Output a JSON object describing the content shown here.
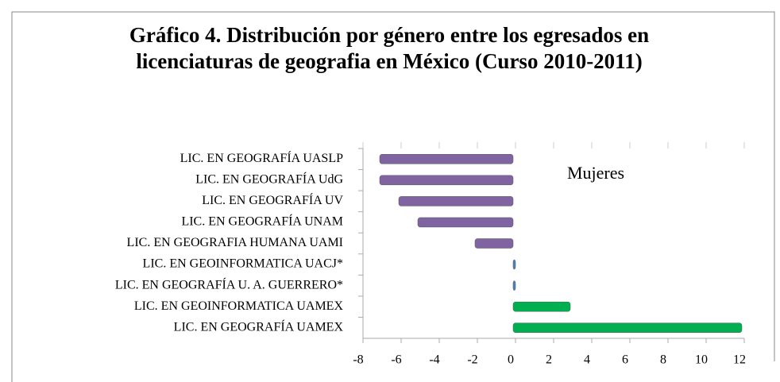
{
  "chart_data": {
    "type": "bar",
    "orientation": "horizontal",
    "title": "Gráfico 4.  Distribución por género entre los egresados en licenciaturas de geografia en México (Curso 2010-2011)",
    "annotation": "Mujeres",
    "categories": [
      "LIC. EN GEOGRAFÍA  UASLP",
      "LIC. EN GEOGRAFÍA  UdG",
      "LIC. EN GEOGRAFÍA  UV",
      "LIC. EN GEOGRAFÍA  UNAM",
      "LIC. EN GEOGRAFIA HUMANA  UAMI",
      "LIC. EN GEOINFORMATICA  UACJ*",
      "LIC. EN GEOGRAFÍA  U. A. GUERRERO*",
      "LIC. EN GEOINFORMATICA  UAMEX",
      "LIC. EN GEOGRAFÍA  UAMEX"
    ],
    "values": [
      -7,
      -7,
      -6,
      -5,
      -2,
      0,
      0,
      3,
      12
    ],
    "colors": [
      "#8064a2",
      "#8064a2",
      "#8064a2",
      "#8064a2",
      "#8064a2",
      "#4f81bd",
      "#4f81bd",
      "#00b050",
      "#00b050"
    ],
    "xlim": [
      -8,
      12
    ],
    "xticks": [
      -8,
      -6,
      -4,
      -2,
      0,
      2,
      4,
      6,
      8,
      10,
      12
    ]
  }
}
